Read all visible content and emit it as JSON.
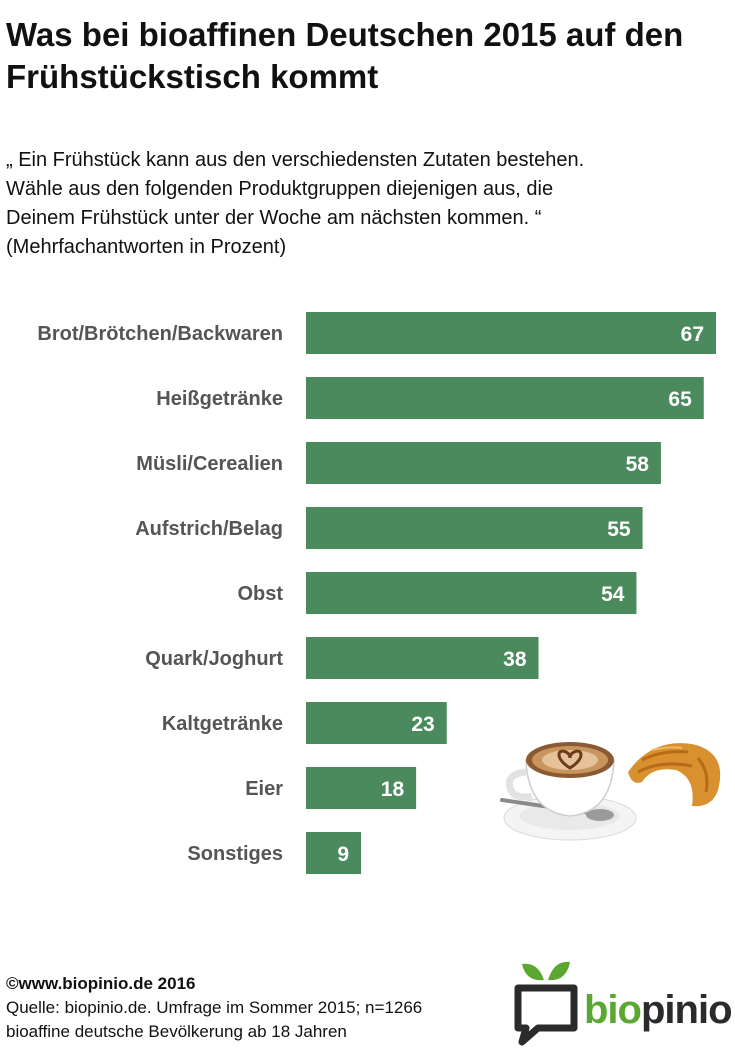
{
  "header": {
    "title_line1": "Was bei bioaffinen Deutschen 2015 auf den",
    "title_line2": "Frühstückstisch kommt"
  },
  "question": {
    "line1": "„ Ein Frühstück kann aus den verschiedensten Zutaten bestehen.",
    "line2": "Wähle aus den folgenden Produktgruppen diejenigen aus, die",
    "line3": "Deinem Frühstück unter der Woche am nächsten kommen. “",
    "line4": "(Mehrfachantworten in Prozent)"
  },
  "chart_data": {
    "type": "bar",
    "orientation": "horizontal",
    "categories": [
      "Brot/Brötchen/Backwaren",
      "Heißgetränke",
      "Müsli/Cerealien",
      "Aufstrich/Belag",
      "Obst",
      "Quark/Joghurt",
      "Kaltgetränke",
      "Eier",
      "Sonstiges"
    ],
    "values": [
      67,
      65,
      58,
      55,
      54,
      38,
      23,
      18,
      9
    ],
    "xlim": [
      0,
      67
    ],
    "bar_color": "#4a8a5c",
    "value_label_color": "#ffffff",
    "grid": false,
    "legend": "none"
  },
  "illustration": {
    "name": "cappuccino-and-croissant"
  },
  "footer": {
    "copyright": "©www.biopinio.de 2016",
    "source": "Quelle: biopinio.de. Umfrage im Sommer 2015; n=1266",
    "population": "bioaffine deutsche Bevölkerung  ab 18 Jahren"
  },
  "logo": {
    "text_bio": "bio",
    "text_pinio": "pinio",
    "green": "#5aa832",
    "dark": "#2b2b2b"
  }
}
